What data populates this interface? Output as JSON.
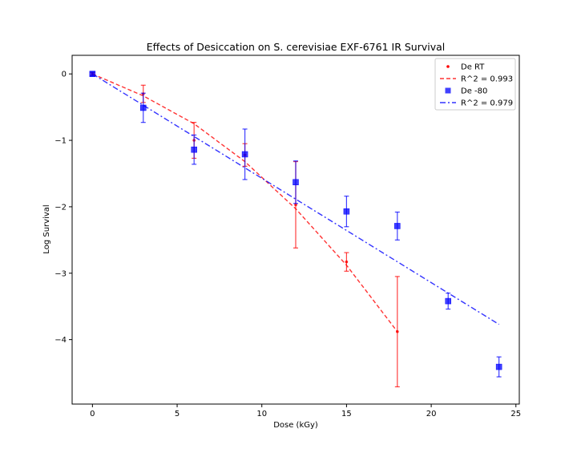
{
  "chart_data": {
    "type": "scatter",
    "title": "Effects of Desiccation on S. cerevisiae EXF-6761 IR Survival",
    "xlabel": "Dose (kGy)",
    "ylabel": "Log Survival",
    "xlim": [
      -1.2,
      25.2
    ],
    "ylim": [
      -4.97,
      0.28
    ],
    "xticks": [
      0,
      5,
      10,
      15,
      20,
      25
    ],
    "xtick_labels": [
      "0",
      "5",
      "10",
      "15",
      "20",
      "25"
    ],
    "yticks": [
      0,
      -1,
      -2,
      -3,
      -4
    ],
    "ytick_labels": [
      "0",
      "−1",
      "−2",
      "−3",
      "−4"
    ],
    "grid": false,
    "legend_position": "top-right",
    "series": [
      {
        "name": "De RT",
        "kind": "scatter",
        "marker": "dot",
        "color": "#ff0000",
        "x": [
          0,
          3,
          6,
          9,
          12,
          15,
          18
        ],
        "y": [
          0.0,
          -0.3,
          -1.0,
          -1.22,
          -1.97,
          -2.83,
          -3.88
        ],
        "yerr": [
          0.02,
          0.13,
          0.27,
          0.17,
          0.65,
          0.14,
          0.83
        ]
      },
      {
        "name": "R^2 = 0.993",
        "kind": "fit",
        "linestyle": "dashed",
        "color": "#ff0000",
        "x": [
          0,
          3,
          6,
          9,
          12,
          15,
          18
        ],
        "y": [
          0.0,
          -0.33,
          -0.75,
          -1.32,
          -2.03,
          -2.88,
          -3.88
        ]
      },
      {
        "name": "De -80",
        "kind": "scatter",
        "marker": "square",
        "color": "#0000ff",
        "x": [
          0,
          3,
          6,
          9,
          12,
          15,
          18,
          21,
          24
        ],
        "y": [
          0.0,
          -0.51,
          -1.14,
          -1.21,
          -1.63,
          -2.07,
          -2.29,
          -3.42,
          -4.41
        ],
        "yerr": [
          0.03,
          0.22,
          0.22,
          0.38,
          0.32,
          0.23,
          0.21,
          0.12,
          0.15
        ]
      },
      {
        "name": "R^2 = 0.979",
        "kind": "fit",
        "linestyle": "dashdot",
        "color": "#0000ff",
        "x": [
          0,
          24
        ],
        "y": [
          0.0,
          -3.77
        ]
      }
    ]
  }
}
